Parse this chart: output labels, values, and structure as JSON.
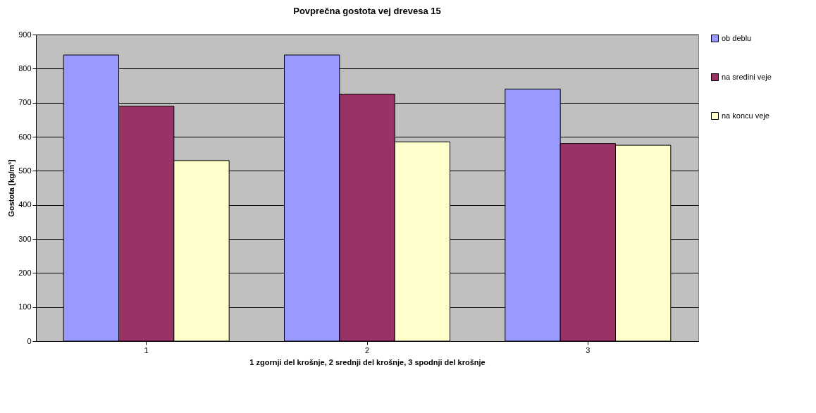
{
  "chart_data": {
    "type": "bar",
    "title": "Povprečna gostota vej drevesa 15",
    "xlabel": "1 zgornji del krošnje, 2 srednji del krošnje, 3 spodnji del krošnje",
    "ylabel": "Gostota [kg/m³]",
    "categories": [
      "1",
      "2",
      "3"
    ],
    "series": [
      {
        "name": "ob deblu",
        "color": "#9999ff",
        "values": [
          840,
          840,
          740
        ]
      },
      {
        "name": "na sredini veje",
        "color": "#993366",
        "values": [
          690,
          725,
          580
        ]
      },
      {
        "name": "na koncu veje",
        "color": "#ffffcc",
        "values": [
          530,
          585,
          575
        ]
      }
    ],
    "ylim": [
      0,
      900
    ],
    "yticks": [
      0,
      100,
      200,
      300,
      400,
      500,
      600,
      700,
      800,
      900
    ],
    "grid": "y",
    "legend": "right"
  }
}
